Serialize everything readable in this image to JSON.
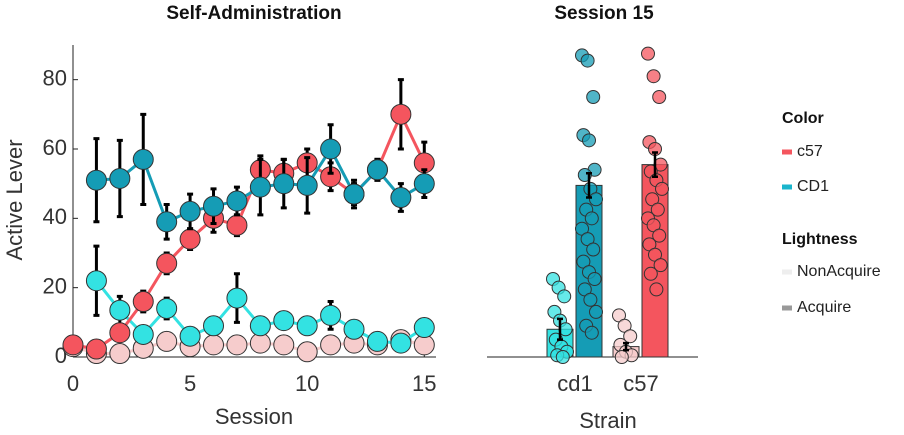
{
  "chart_data": [
    {
      "type": "line",
      "title": "Self-Administration",
      "x_label": "Session",
      "y_label": "Active Lever",
      "x": [
        0,
        1,
        2,
        3,
        4,
        5,
        6,
        7,
        8,
        9,
        10,
        11,
        12,
        13,
        14,
        15
      ],
      "xlim": [
        0,
        15.5
      ],
      "xticks": [
        0,
        5,
        10,
        15
      ],
      "ylim": [
        0,
        90
      ],
      "yticks": [
        0,
        20,
        40,
        60,
        80
      ],
      "series": [
        {
          "color_group": "c57",
          "lightness": "NonAcquire",
          "color": "#f6cccc",
          "values": [
            3,
            1,
            1,
            2.5,
            4.5,
            3,
            3.5,
            3.5,
            4,
            3.5,
            1.5,
            3.5,
            4,
            3.5,
            5,
            3.5
          ],
          "errors": [
            null,
            null,
            null,
            null,
            null,
            null,
            null,
            null,
            null,
            null,
            null,
            null,
            null,
            null,
            null,
            null
          ]
        },
        {
          "color_group": "CD1",
          "lightness": "NonAcquire",
          "color": "#33e2e2",
          "values": [
            null,
            22,
            13.5,
            6.5,
            14,
            6,
            9,
            17,
            9,
            10.5,
            9,
            12,
            8,
            4.5,
            4,
            8.5
          ],
          "errors": [
            null,
            10,
            4,
            2,
            3,
            1,
            2,
            7,
            1,
            2,
            1,
            4,
            1,
            1,
            1,
            1
          ]
        },
        {
          "color_group": "c57",
          "lightness": "Acquire",
          "color": "#f4555e",
          "values": [
            3.5,
            2.3,
            7,
            16,
            27,
            34,
            40,
            38,
            54,
            53,
            56,
            52,
            47,
            54,
            70,
            56
          ],
          "errors": [
            1,
            1,
            2,
            3,
            3,
            3,
            4,
            3,
            4,
            4,
            4,
            4,
            4,
            3,
            10,
            6
          ]
        },
        {
          "color_group": "CD1",
          "lightness": "Acquire",
          "color": "#159cb5",
          "values": [
            null,
            51,
            51.5,
            57,
            39,
            42,
            43.5,
            45,
            49,
            50,
            49.5,
            60,
            47,
            54,
            46,
            50
          ],
          "errors": [
            null,
            12,
            11,
            13,
            5,
            5,
            5,
            4,
            8,
            7,
            8,
            7,
            3,
            3,
            4,
            4
          ]
        }
      ]
    },
    {
      "type": "bar",
      "title": "Session 15",
      "x_label": "Strain",
      "categories": [
        "cd1",
        "c57"
      ],
      "ylim": [
        0,
        90
      ],
      "series": [
        {
          "lightness": "NonAcquire",
          "colors": [
            "#33e2e2",
            "#f6cccc"
          ],
          "values": [
            8,
            3
          ],
          "errors": [
            3,
            1
          ],
          "points": [
            [
              22.5,
              20,
              17.5,
              13,
              10.5,
              8,
              5,
              3,
              1.5,
              0.5,
              0
            ],
            [
              12,
              9,
              6,
              3.5,
              1.5,
              0.5,
              0
            ]
          ]
        },
        {
          "lightness": "Acquire",
          "colors": [
            "#159cb5",
            "#f4555e"
          ],
          "values": [
            49.5,
            55.5
          ],
          "errors": [
            3.5,
            3.5
          ],
          "points": [
            [
              87,
              85.5,
              75,
              64,
              62.5,
              54,
              52.5,
              48.5,
              45.5,
              42.5,
              40,
              37,
              34,
              31,
              27.5,
              24.5,
              22.5,
              19.5,
              16.5,
              13,
              9,
              7
            ],
            [
              87.5,
              81,
              75,
              62,
              60,
              55.5,
              53.5,
              51,
              48.5,
              45.5,
              42.5,
              40,
              38,
              35,
              32.5,
              29.5,
              26.5,
              24,
              19.5
            ]
          ]
        }
      ]
    }
  ],
  "legend": {
    "color_title": "Color",
    "color_entries": [
      {
        "label": "c57",
        "color": "#f4555e"
      },
      {
        "label": "CD1",
        "color": "#1ab5cc"
      }
    ],
    "lightness_title": "Lightness",
    "lightness_entries": [
      {
        "label": "NonAcquire",
        "color": "#eeeeee"
      },
      {
        "label": "Acquire",
        "color": "#999999"
      }
    ]
  }
}
